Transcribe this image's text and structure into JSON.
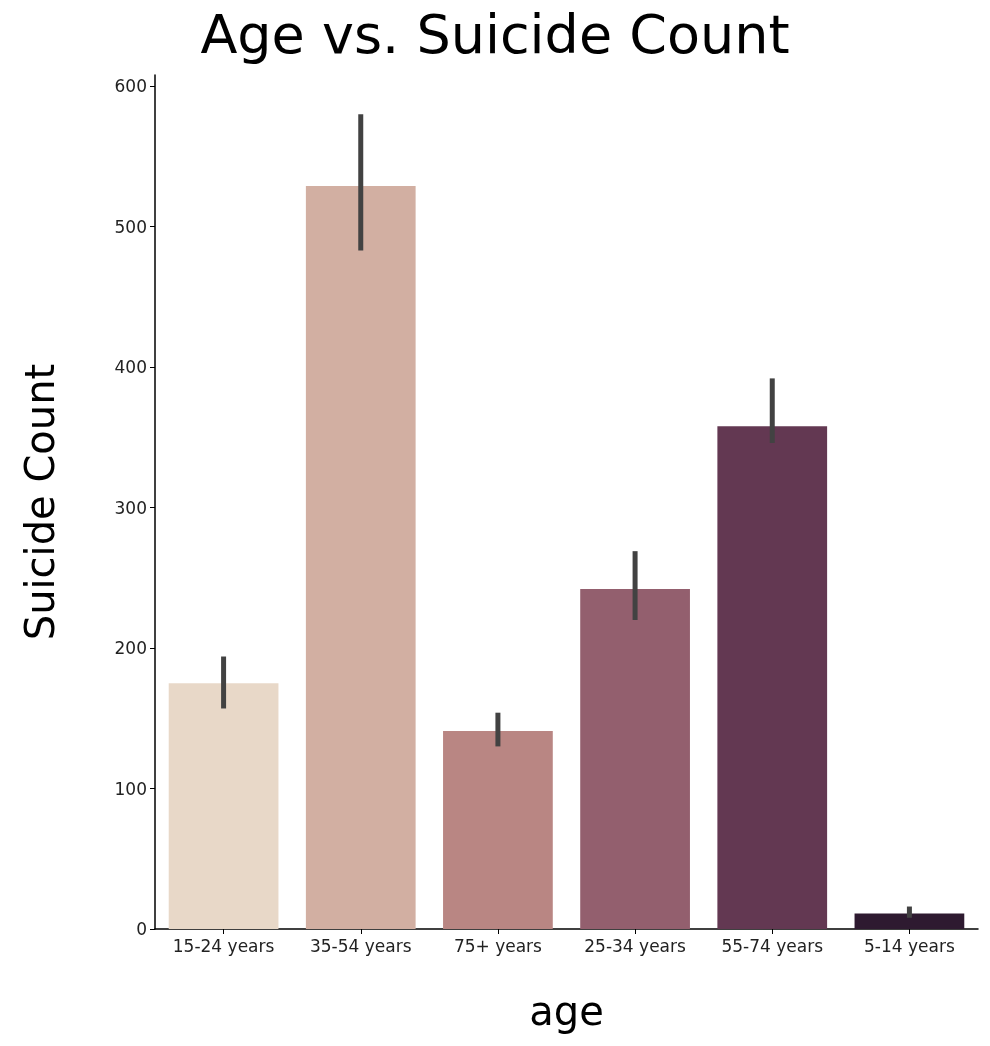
{
  "chart_data": {
    "type": "bar",
    "title": "Age vs. Suicide Count",
    "xlabel": "age",
    "ylabel": "Suicide Count",
    "categories": [
      "15-24 years",
      "35-54 years",
      "75+ years",
      "25-34 years",
      "55-74 years",
      "5-14 years"
    ],
    "values": [
      175,
      529,
      141,
      242,
      358,
      11
    ],
    "colors": [
      "#e8d8c8",
      "#d2afa2",
      "#b98683",
      "#935f6e",
      "#633852",
      "#2e1a30"
    ],
    "errors": [
      [
        157,
        194
      ],
      [
        483,
        580
      ],
      [
        130,
        154
      ],
      [
        220,
        269
      ],
      [
        346,
        392
      ],
      [
        8,
        16
      ]
    ],
    "ylim": [
      0,
      608
    ],
    "yticks": [
      0,
      100,
      200,
      300,
      400,
      500,
      600
    ],
    "grid": false
  }
}
